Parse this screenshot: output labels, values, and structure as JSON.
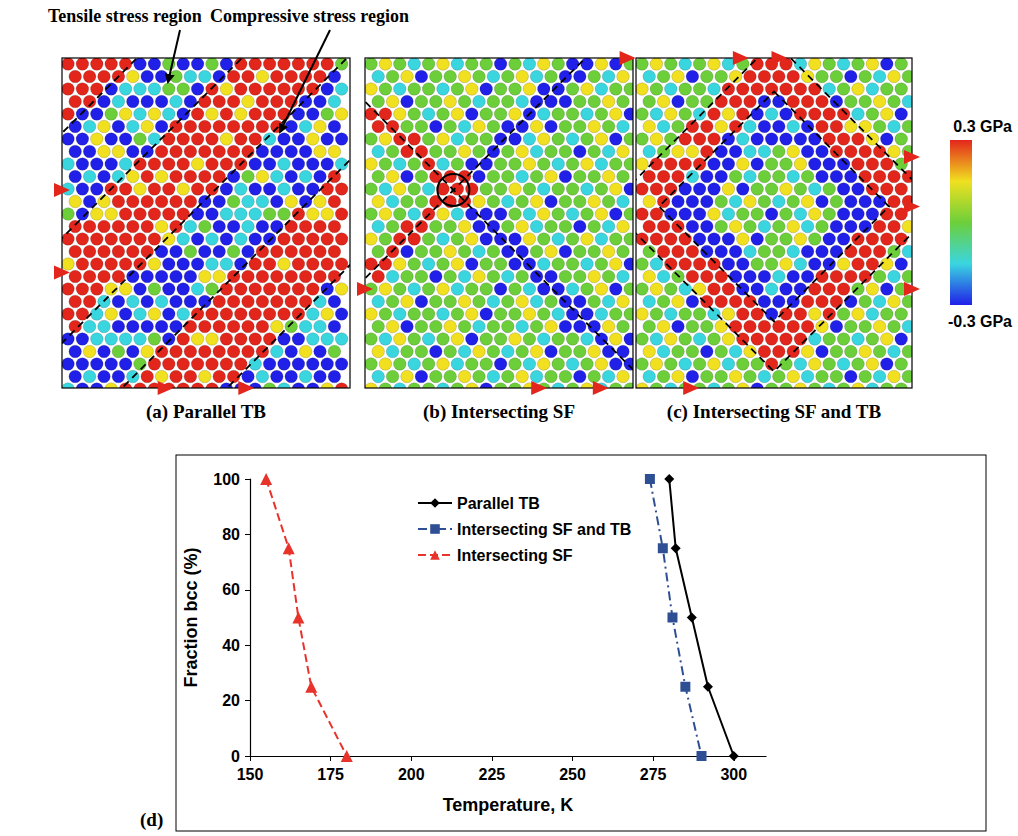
{
  "annotations": [
    "Tensile stress region",
    "Compressive stress region"
  ],
  "panels": [
    {
      "label": "(a) Parallel TB"
    },
    {
      "label": "(b) Intersecting SF"
    },
    {
      "label": "(c) Intersecting SF and TB"
    }
  ],
  "colorbar": {
    "range": [
      -0.3,
      0.3
    ],
    "ticks": [
      {
        "value": 0.3,
        "label": "0.3 GPa"
      },
      {
        "value": -0.3,
        "label": "-0.3 GPa"
      }
    ],
    "colors": [
      "#e3261c",
      "#f0e020",
      "#6ccf3a",
      "#3ad6e0",
      "#2020e8"
    ]
  },
  "chart_data": {
    "type": "line",
    "label": "(d)",
    "x_label": "Temperature, K",
    "y_label": "Fraction bcc (%)",
    "xlim": [
      150,
      310
    ],
    "xticks": [
      150,
      175,
      200,
      225,
      250,
      275,
      300
    ],
    "ylim": [
      0,
      100
    ],
    "yticks": [
      0,
      20,
      40,
      60,
      80,
      100
    ],
    "grid": false,
    "legend": "top",
    "series": [
      {
        "name": "Parallel TB",
        "color": "#000000",
        "marker": "diamond",
        "line_style": "solid",
        "x": [
          280,
          282,
          287,
          292,
          300
        ],
        "values": [
          100,
          75,
          50,
          25,
          0
        ]
      },
      {
        "name": "Intersecting SF and TB",
        "color": "#2f4f94",
        "marker": "square",
        "line_style": "dashdot",
        "x": [
          274,
          278,
          281,
          285,
          290
        ],
        "values": [
          100,
          75,
          50,
          25,
          0
        ]
      },
      {
        "name": "Intersecting SF",
        "color": "#e8332b",
        "marker": "triangle",
        "line_style": "dashed",
        "x": [
          155,
          162,
          165,
          169,
          180
        ],
        "values": [
          100,
          75,
          50,
          25,
          0
        ]
      }
    ]
  }
}
